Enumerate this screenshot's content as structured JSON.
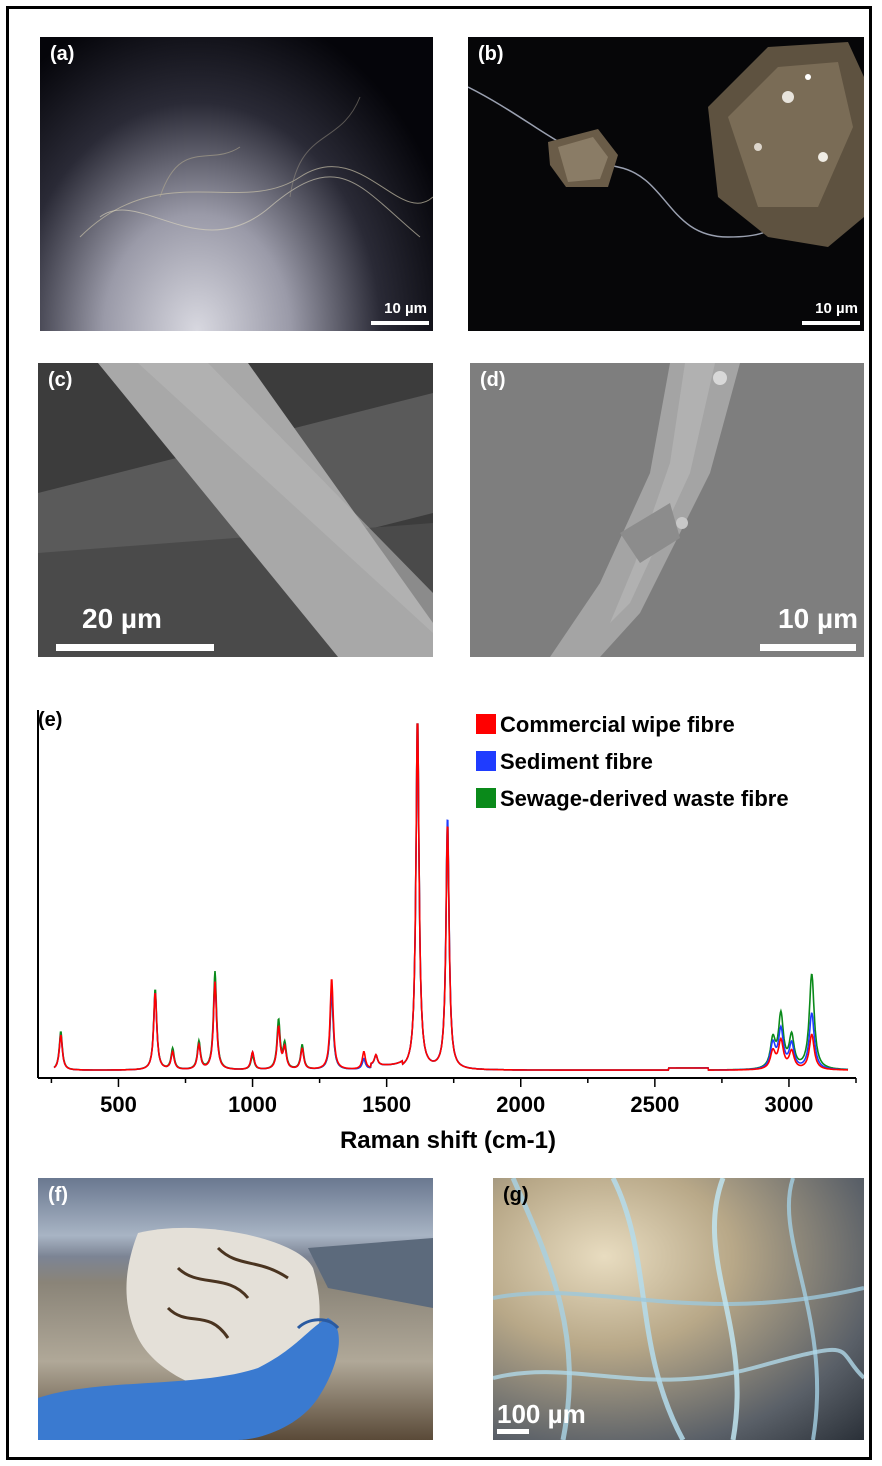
{
  "figure": {
    "panels": {
      "a": {
        "label": "(a)",
        "scale": "10 µm"
      },
      "b": {
        "label": "(b)",
        "scale": "10 µm"
      },
      "c": {
        "label": "(c)",
        "scale": "20 µm"
      },
      "d": {
        "label": "(d)",
        "scale": "10 µm"
      },
      "e": {
        "label": "(e)"
      },
      "f": {
        "label": "(f)"
      },
      "g": {
        "label": "(g)",
        "scale": "100 µm"
      }
    },
    "colors": {
      "commercial": "#ff0000",
      "sediment": "#1f3cff",
      "sewage": "#0a8a1a"
    }
  },
  "chart_data": {
    "type": "line",
    "title": "",
    "xlabel": "Raman shift (cm-1)",
    "ylabel": "",
    "xlim": [
      200,
      3250
    ],
    "ylim": [
      0,
      1
    ],
    "xticks": [
      500,
      1000,
      1500,
      2000,
      2500,
      3000
    ],
    "legend_position": "top-right",
    "series": [
      {
        "name": "Commercial wipe fibre",
        "color": "#ff0000",
        "peaks": [
          [
            285,
            0.1
          ],
          [
            637,
            0.22
          ],
          [
            702,
            0.05
          ],
          [
            800,
            0.07
          ],
          [
            860,
            0.25
          ],
          [
            1000,
            0.05
          ],
          [
            1097,
            0.12
          ],
          [
            1120,
            0.06
          ],
          [
            1185,
            0.06
          ],
          [
            1295,
            0.26
          ],
          [
            1415,
            0.05
          ],
          [
            1460,
            0.03
          ],
          [
            1615,
            1.0
          ],
          [
            1727,
            0.7
          ],
          [
            2940,
            0.05
          ],
          [
            2970,
            0.08
          ],
          [
            3010,
            0.05
          ],
          [
            3085,
            0.1
          ]
        ]
      },
      {
        "name": "Sediment fibre",
        "color": "#1f3cff",
        "peaks": [
          [
            285,
            0.1
          ],
          [
            637,
            0.22
          ],
          [
            702,
            0.05
          ],
          [
            800,
            0.07
          ],
          [
            860,
            0.25
          ],
          [
            1000,
            0.05
          ],
          [
            1097,
            0.12
          ],
          [
            1120,
            0.06
          ],
          [
            1185,
            0.06
          ],
          [
            1295,
            0.23
          ],
          [
            1415,
            0.03
          ],
          [
            1460,
            0.03
          ],
          [
            1615,
            1.0
          ],
          [
            1727,
            0.72
          ],
          [
            2940,
            0.07
          ],
          [
            2970,
            0.11
          ],
          [
            3010,
            0.07
          ],
          [
            3085,
            0.16
          ]
        ]
      },
      {
        "name": "Sewage-derived waste fibre",
        "color": "#0a8a1a",
        "peaks": [
          [
            285,
            0.11
          ],
          [
            637,
            0.23
          ],
          [
            702,
            0.06
          ],
          [
            800,
            0.08
          ],
          [
            860,
            0.28
          ],
          [
            1000,
            0.04
          ],
          [
            1097,
            0.14
          ],
          [
            1120,
            0.07
          ],
          [
            1185,
            0.07
          ],
          [
            1295,
            0.22
          ],
          [
            1415,
            0.03
          ],
          [
            1460,
            0.03
          ],
          [
            1615,
            1.0
          ],
          [
            1727,
            0.7
          ],
          [
            2940,
            0.08
          ],
          [
            2970,
            0.15
          ],
          [
            3010,
            0.09
          ],
          [
            3085,
            0.27
          ]
        ]
      }
    ]
  }
}
